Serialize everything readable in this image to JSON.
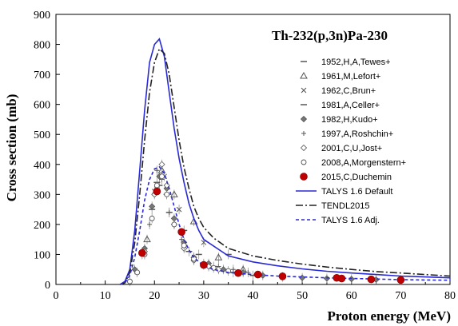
{
  "chart_data": {
    "type": "scatter",
    "title": "Th-232(p,3n)Pa-230",
    "xlabel": "Proton energy (MeV)",
    "ylabel": "Cross section (mb)",
    "xlim": [
      0,
      80
    ],
    "ylim": [
      0,
      900
    ],
    "x_ticks": [
      "0",
      "10",
      "20",
      "30",
      "40",
      "50",
      "60",
      "70",
      "80"
    ],
    "y_ticks": [
      "0",
      "100",
      "200",
      "300",
      "400",
      "500",
      "600",
      "700",
      "800",
      "900"
    ],
    "grid": false,
    "legend_position": "right",
    "series": [
      {
        "name": "1952,H,A,Tewes+",
        "kind": "points",
        "marker": "dash",
        "color": "#555555",
        "points": [
          [
            19.5,
            250
          ],
          [
            21,
            330
          ],
          [
            23,
            240
          ],
          [
            27,
            110
          ],
          [
            32,
            60
          ],
          [
            36,
            40
          ],
          [
            40,
            30
          ]
        ]
      },
      {
        "name": "1961,M,Lefort+",
        "kind": "points",
        "marker": "triangle",
        "color": "#555555",
        "points": [
          [
            18.5,
            150
          ],
          [
            21.5,
            380
          ],
          [
            24,
            300
          ],
          [
            28,
            210
          ],
          [
            33,
            90
          ],
          [
            38,
            50
          ]
        ]
      },
      {
        "name": "1962,C,Brun+",
        "kind": "points",
        "marker": "x",
        "color": "#555555",
        "points": [
          [
            20,
            310
          ],
          [
            22,
            360
          ],
          [
            25,
            250
          ],
          [
            30,
            140
          ]
        ]
      },
      {
        "name": "1981,A,Celler+",
        "kind": "points",
        "marker": "dash",
        "color": "#555555",
        "points": [
          [
            20.5,
            340
          ],
          [
            22.5,
            300
          ],
          [
            26,
            180
          ],
          [
            29,
            100
          ],
          [
            35,
            100
          ]
        ]
      },
      {
        "name": "1982,H,Kudo+",
        "kind": "points",
        "marker": "diamond",
        "color": "#555555",
        "points": [
          [
            16,
            50
          ],
          [
            18,
            120
          ],
          [
            19.5,
            260
          ],
          [
            21,
            360
          ],
          [
            22.5,
            320
          ],
          [
            24,
            220
          ],
          [
            26,
            140
          ],
          [
            28,
            90
          ],
          [
            31,
            70
          ],
          [
            34,
            50
          ],
          [
            38,
            40
          ],
          [
            42,
            30
          ],
          [
            46,
            25
          ],
          [
            50,
            22
          ],
          [
            55,
            20
          ],
          [
            60,
            18
          ],
          [
            65,
            16
          ],
          [
            70,
            15
          ]
        ]
      },
      {
        "name": "1997,A,Roshchin+",
        "kind": "points",
        "marker": "plus",
        "color": "#555555",
        "points": [
          [
            17.5,
            100
          ],
          [
            19,
            200
          ],
          [
            20.5,
            380
          ],
          [
            21.5,
            350
          ],
          [
            23,
            240
          ],
          [
            25.5,
            150
          ],
          [
            28,
            90
          ],
          [
            30,
            70
          ],
          [
            33,
            60
          ],
          [
            36,
            50
          ],
          [
            39,
            40
          ]
        ]
      },
      {
        "name": "2001,C,U,Jost+",
        "kind": "points",
        "marker": "open-diamond",
        "color": "#555555",
        "points": [
          [
            18,
            110
          ],
          [
            20,
            300
          ],
          [
            21.5,
            400
          ],
          [
            22.5,
            330
          ],
          [
            24,
            200
          ],
          [
            26,
            120
          ],
          [
            28,
            80
          ],
          [
            31,
            60
          ],
          [
            33,
            50
          ]
        ]
      },
      {
        "name": "2008,A,Morgenstern+",
        "kind": "points",
        "marker": "circle",
        "color": "#555555",
        "points": [
          [
            15,
            10
          ],
          [
            16.5,
            40
          ],
          [
            18,
            100
          ],
          [
            19.5,
            220
          ],
          [
            20.5,
            330
          ],
          [
            21.5,
            360
          ],
          [
            22.5,
            300
          ],
          [
            24,
            200
          ],
          [
            26,
            130
          ],
          [
            28,
            85
          ],
          [
            30,
            65
          ],
          [
            32,
            55
          ],
          [
            35,
            45
          ]
        ]
      },
      {
        "name": "2015,C,Duchemin",
        "kind": "points",
        "marker": "filled-circle",
        "color": "#c00000",
        "points": [
          [
            17.5,
            105
          ],
          [
            20.5,
            310
          ],
          [
            25.5,
            175
          ],
          [
            30,
            65
          ],
          [
            37,
            38
          ],
          [
            41,
            33
          ],
          [
            46,
            27
          ],
          [
            57,
            22
          ],
          [
            58,
            20
          ],
          [
            64,
            17
          ],
          [
            70,
            15
          ]
        ]
      },
      {
        "name": "TALYS 1.6 Default",
        "kind": "line",
        "dash": "",
        "color": "#2a2ad4",
        "points": [
          [
            13,
            0
          ],
          [
            14,
            10
          ],
          [
            15,
            50
          ],
          [
            16,
            180
          ],
          [
            17,
            380
          ],
          [
            18,
            580
          ],
          [
            19,
            740
          ],
          [
            20,
            800
          ],
          [
            21,
            818
          ],
          [
            22,
            760
          ],
          [
            23,
            640
          ],
          [
            24,
            520
          ],
          [
            25,
            420
          ],
          [
            26,
            340
          ],
          [
            27,
            270
          ],
          [
            28,
            220
          ],
          [
            29,
            180
          ],
          [
            30,
            150
          ],
          [
            35,
            95
          ],
          [
            40,
            75
          ],
          [
            45,
            62
          ],
          [
            50,
            52
          ],
          [
            55,
            44
          ],
          [
            60,
            38
          ],
          [
            65,
            33
          ],
          [
            70,
            28
          ],
          [
            75,
            25
          ],
          [
            80,
            22
          ]
        ]
      },
      {
        "name": "TENDL2015",
        "kind": "line",
        "dash": "9 3 2 3",
        "color": "#222222",
        "points": [
          [
            13,
            0
          ],
          [
            14,
            5
          ],
          [
            15,
            40
          ],
          [
            16,
            140
          ],
          [
            17,
            300
          ],
          [
            18,
            480
          ],
          [
            19,
            640
          ],
          [
            20,
            740
          ],
          [
            21,
            785
          ],
          [
            22,
            770
          ],
          [
            23,
            700
          ],
          [
            24,
            590
          ],
          [
            25,
            480
          ],
          [
            26,
            390
          ],
          [
            27,
            320
          ],
          [
            28,
            260
          ],
          [
            29,
            220
          ],
          [
            30,
            190
          ],
          [
            32,
            155
          ],
          [
            35,
            120
          ],
          [
            40,
            95
          ],
          [
            45,
            80
          ],
          [
            50,
            68
          ],
          [
            55,
            58
          ],
          [
            60,
            50
          ],
          [
            65,
            43
          ],
          [
            70,
            38
          ],
          [
            75,
            33
          ],
          [
            80,
            28
          ]
        ]
      },
      {
        "name": "TALYS 1.6 Adj.",
        "kind": "line",
        "dash": "4 3",
        "color": "#2a2ad4",
        "points": [
          [
            13,
            0
          ],
          [
            14,
            5
          ],
          [
            15,
            30
          ],
          [
            16,
            90
          ],
          [
            17,
            180
          ],
          [
            18,
            280
          ],
          [
            19,
            350
          ],
          [
            20,
            385
          ],
          [
            21,
            392
          ],
          [
            22,
            370
          ],
          [
            23,
            320
          ],
          [
            24,
            260
          ],
          [
            25,
            200
          ],
          [
            26,
            150
          ],
          [
            27,
            115
          ],
          [
            28,
            90
          ],
          [
            30,
            62
          ],
          [
            32,
            50
          ],
          [
            35,
            40
          ],
          [
            40,
            33
          ],
          [
            45,
            28
          ],
          [
            50,
            25
          ],
          [
            55,
            22
          ],
          [
            60,
            20
          ],
          [
            65,
            18
          ],
          [
            70,
            16
          ],
          [
            75,
            15
          ],
          [
            80,
            14
          ]
        ]
      }
    ]
  }
}
